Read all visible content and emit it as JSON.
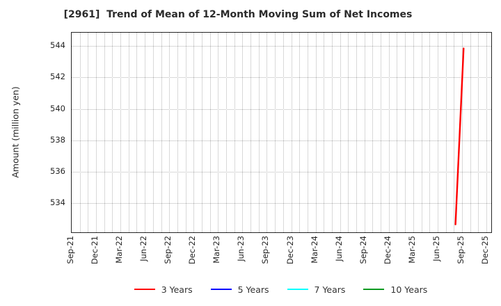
{
  "chart_data": {
    "type": "line",
    "title": "[2961]  Trend of Mean of 12-Month Moving Sum of Net Incomes",
    "xlabel": "",
    "ylabel": "Amount (million yen)",
    "x_tick_labels": [
      "Sep-21",
      "Dec-21",
      "Mar-22",
      "Jun-22",
      "Sep-22",
      "Dec-22",
      "Mar-23",
      "Jun-23",
      "Sep-23",
      "Dec-23",
      "Mar-24",
      "Jun-24",
      "Sep-24",
      "Dec-24",
      "Mar-25",
      "Jun-25",
      "Sep-25",
      "Dec-25"
    ],
    "x_tick_step_months": 3,
    "xlim_months": [
      0,
      51.6
    ],
    "y_ticks": [
      534,
      536,
      538,
      540,
      542,
      544
    ],
    "ylim": [
      532.15,
      544.85
    ],
    "grid": {
      "style": "dotted",
      "color": "#b3b3b3",
      "vertical": "every month",
      "horizontal": "every y tick"
    },
    "legend": {
      "position": "bottom-center"
    },
    "series": [
      {
        "name": "3 Years",
        "color": "#ff0000",
        "points": [
          {
            "x": "Aug-25",
            "month_offset": 47.2,
            "y": 532.65
          },
          {
            "x": "Sep-25",
            "month_offset": 48.2,
            "y": 543.85
          }
        ]
      },
      {
        "name": "5 Years",
        "color": "#0000ff",
        "points": []
      },
      {
        "name": "7 Years",
        "color": "#00ffff",
        "points": []
      },
      {
        "name": "10 Years",
        "color": "#0c9a20",
        "points": []
      }
    ]
  }
}
